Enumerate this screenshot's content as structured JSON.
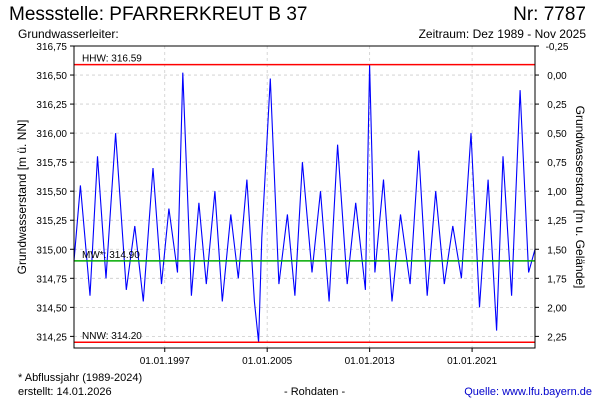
{
  "header": {
    "title_left": "Messstelle: PFARRERKREUT B 37",
    "title_right": "Nr: 7787",
    "sub_left": "Grundwasserleiter:",
    "sub_right": "Zeitraum: Dez 1989 - Nov 2025"
  },
  "footer": {
    "note": "* Abflussjahr (1989-2024)",
    "created": "erstellt:  14.01.2026",
    "middle": "- Rohdaten -",
    "source": "Quelle: www.lfu.bayern.de"
  },
  "colors": {
    "series": "#0000ff",
    "extreme_lines": "#ff0000",
    "mean_line": "#00aa00",
    "grid": "#cccccc"
  },
  "chart_data": {
    "type": "line",
    "ylabel": "Grundwasserstand [m ü. NN]",
    "ylabel_right": "Grundwasserstand [m u. Gelände]",
    "ylim": [
      314.15,
      316.75
    ],
    "yticks": [
      "316,75",
      "316,50",
      "316,25",
      "316,00",
      "315,75",
      "315,50",
      "315,25",
      "315,00",
      "314,75",
      "314,50",
      "314,25"
    ],
    "yticks_right": [
      "-0,25",
      "0,00",
      "0,25",
      "0,50",
      "0,75",
      "1,00",
      "1,25",
      "1,50",
      "1,75",
      "2,00",
      "2,25"
    ],
    "xlim": [
      "1989-12-01",
      "2025-11-30"
    ],
    "xticks": [
      "01.01.1997",
      "01.01.2005",
      "01.01.2013",
      "01.01.2021"
    ],
    "grid": true,
    "reference_lines": [
      {
        "label": "HHW: 316.59",
        "value": 316.59,
        "color": "#ff0000"
      },
      {
        "label": "MW*: 314.90",
        "value": 314.9,
        "color": "#00aa00"
      },
      {
        "label": "NNW: 314.20",
        "value": 314.2,
        "color": "#ff0000"
      }
    ],
    "series": [
      {
        "color": "#0000ff",
        "x": [
          "1989-12-01",
          "1990-06-01",
          "1991-03-01",
          "1991-10-01",
          "1992-06-01",
          "1993-03-01",
          "1994-01-01",
          "1994-09-01",
          "1995-05-01",
          "1996-02-01",
          "1996-10-01",
          "1997-05-01",
          "1998-01-01",
          "1998-06-01",
          "1999-02-01",
          "1999-09-01",
          "2000-04-01",
          "2000-12-01",
          "2001-07-01",
          "2002-03-01",
          "2002-10-01",
          "2003-06-01",
          "2004-01-01",
          "2004-05-01",
          "2004-08-01",
          "2005-04-01",
          "2005-12-01",
          "2006-08-01",
          "2007-03-01",
          "2007-10-01",
          "2008-07-01",
          "2009-03-01",
          "2009-11-01",
          "2010-07-01",
          "2011-04-01",
          "2011-12-01",
          "2012-09-01",
          "2013-01-01",
          "2013-06-01",
          "2014-02-01",
          "2014-10-01",
          "2015-06-01",
          "2016-03-01",
          "2016-11-01",
          "2017-07-01",
          "2018-03-01",
          "2018-11-01",
          "2019-07-01",
          "2020-03-01",
          "2020-12-01",
          "2021-08-01",
          "2022-04-01",
          "2022-12-01",
          "2023-06-01",
          "2024-02-01",
          "2024-10-01",
          "2025-06-01",
          "2025-11-30"
        ],
        "y": [
          314.9,
          315.55,
          314.6,
          315.8,
          314.75,
          316.0,
          314.65,
          315.2,
          314.55,
          315.7,
          314.7,
          315.35,
          314.8,
          316.52,
          314.6,
          315.4,
          314.7,
          315.5,
          314.55,
          315.3,
          314.75,
          315.6,
          314.55,
          314.2,
          315.1,
          316.47,
          314.7,
          315.3,
          314.6,
          315.75,
          314.8,
          315.5,
          314.55,
          315.9,
          314.7,
          315.4,
          314.65,
          316.59,
          314.8,
          315.6,
          314.55,
          315.3,
          314.7,
          315.85,
          314.6,
          315.5,
          314.7,
          315.2,
          314.75,
          316.0,
          314.5,
          315.6,
          314.3,
          315.8,
          314.6,
          316.37,
          314.8,
          315.0
        ]
      }
    ]
  }
}
